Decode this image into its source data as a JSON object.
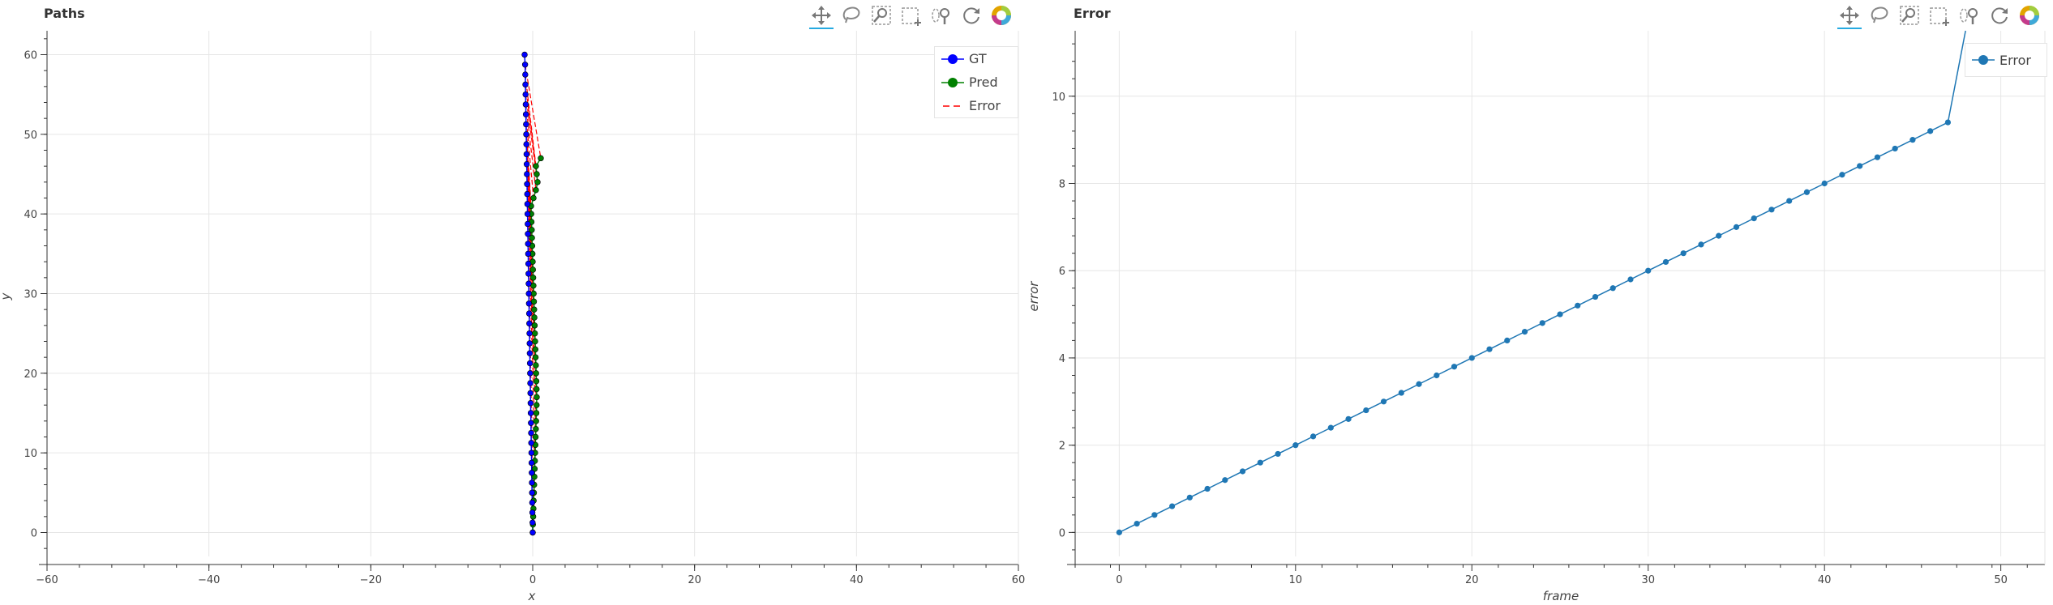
{
  "toolbar": {
    "tools": [
      "pan-icon",
      "lasso-select-icon",
      "box-zoom-icon",
      "box-select-icon",
      "wheel-zoom-icon",
      "reset-icon",
      "bokeh-logo-icon"
    ]
  },
  "chart_data": [
    {
      "type": "line",
      "title": "Paths",
      "xlabel": "x",
      "ylabel": "y",
      "xlim": [
        -60,
        60
      ],
      "ylim": [
        -3,
        63
      ],
      "xticks": [
        "−60",
        "−40",
        "−20",
        "0",
        "20",
        "40",
        "60"
      ],
      "yticks": [
        "0",
        "10",
        "20",
        "30",
        "40",
        "50",
        "60"
      ],
      "grid": true,
      "legend_position": "top-right",
      "series": [
        {
          "name": "GT",
          "color": "#0000ff",
          "marker": "circle",
          "x": [
            0,
            -0.02,
            -0.04,
            -0.06,
            -0.08,
            -0.1,
            -0.12,
            -0.14,
            -0.16,
            -0.18,
            -0.2,
            -0.22,
            -0.24,
            -0.26,
            -0.28,
            -0.3,
            -0.32,
            -0.34,
            -0.36,
            -0.38,
            -0.4,
            -0.42,
            -0.44,
            -0.46,
            -0.48,
            -0.5,
            -0.52,
            -0.54,
            -0.56,
            -0.58,
            -0.6,
            -0.62,
            -0.64,
            -0.66,
            -0.68,
            -0.7,
            -0.72,
            -0.74,
            -0.76,
            -0.78,
            -0.8,
            -0.82,
            -0.84,
            -0.86,
            -0.88,
            -0.9,
            -0.92,
            -0.94,
            -1
          ],
          "y": [
            0,
            1.25,
            2.5,
            3.75,
            5,
            6.25,
            7.5,
            8.75,
            10,
            11.25,
            12.5,
            13.75,
            15,
            16.25,
            17.5,
            18.75,
            20,
            21.25,
            22.5,
            23.75,
            25,
            26.25,
            27.5,
            28.75,
            30,
            31.25,
            32.5,
            33.75,
            35,
            36.25,
            37.5,
            38.75,
            40,
            41.25,
            42.5,
            43.75,
            45,
            46.25,
            47.5,
            48.75,
            50,
            51.25,
            52.5,
            53.75,
            55,
            56.25,
            57.5,
            58.75,
            60
          ]
        },
        {
          "name": "Pred",
          "color": "#008000",
          "marker": "circle",
          "x": [
            0,
            0.03,
            0.06,
            0.09,
            0.12,
            0.15,
            0.18,
            0.21,
            0.24,
            0.27,
            0.3,
            0.33,
            0.36,
            0.39,
            0.42,
            0.45,
            0.48,
            0.5,
            0.48,
            0.45,
            0.42,
            0.39,
            0.36,
            0.33,
            0.3,
            0.27,
            0.24,
            0.21,
            0.18,
            0.15,
            0.12,
            0.09,
            0.06,
            0.03,
            0,
            -0.03,
            -0.06,
            -0.09,
            -0.12,
            -0.15,
            -0.18,
            -0.2,
            0.1,
            0.4,
            0.6,
            0.5,
            0.4,
            1
          ],
          "y": [
            0,
            1,
            2,
            3,
            4,
            5,
            6,
            7,
            8,
            9,
            10,
            11,
            12,
            13,
            14,
            15,
            16,
            17,
            18,
            19,
            20,
            21,
            22,
            23,
            24,
            25,
            26,
            27,
            28,
            29,
            30,
            31,
            32,
            33,
            34,
            35,
            36,
            37,
            38,
            39,
            40,
            41,
            42,
            43,
            44,
            45,
            46,
            47
          ]
        },
        {
          "name": "Error",
          "color": "#ff0000",
          "dash": "dashed"
        }
      ]
    },
    {
      "type": "line",
      "title": "Error",
      "xlabel": "frame",
      "ylabel": "error",
      "xlim": [
        -2.5,
        52.5
      ],
      "ylim": [
        -0.55,
        11.5
      ],
      "xticks": [
        "0",
        "10",
        "20",
        "30",
        "40",
        "50"
      ],
      "yticks": [
        "0",
        "2",
        "4",
        "6",
        "8",
        "10"
      ],
      "grid": true,
      "legend_position": "top-right",
      "series": [
        {
          "name": "Error",
          "color": "#1f77b4",
          "marker": "circle",
          "x": [
            0,
            1,
            2,
            3,
            4,
            5,
            6,
            7,
            8,
            9,
            10,
            11,
            12,
            13,
            14,
            15,
            16,
            17,
            18,
            19,
            20,
            21,
            22,
            23,
            24,
            25,
            26,
            27,
            28,
            29,
            30,
            31,
            32,
            33,
            34,
            35,
            36,
            37,
            38,
            39,
            40,
            41,
            42,
            43,
            44,
            45,
            46,
            47,
            48
          ],
          "y": [
            0,
            0.2,
            0.4,
            0.6,
            0.8,
            1,
            1.2,
            1.4,
            1.6,
            1.8,
            2,
            2.2,
            2.4,
            2.6,
            2.8,
            3,
            3.2,
            3.4,
            3.6,
            3.8,
            4,
            4.2,
            4.4,
            4.6,
            4.8,
            5,
            5.2,
            5.4,
            5.6,
            5.8,
            6,
            6.2,
            6.4,
            6.6,
            6.8,
            7,
            7.2,
            7.4,
            7.6,
            7.8,
            8,
            8.2,
            8.4,
            8.6,
            8.8,
            9,
            9.2,
            9.4,
            11.5
          ]
        }
      ]
    }
  ]
}
